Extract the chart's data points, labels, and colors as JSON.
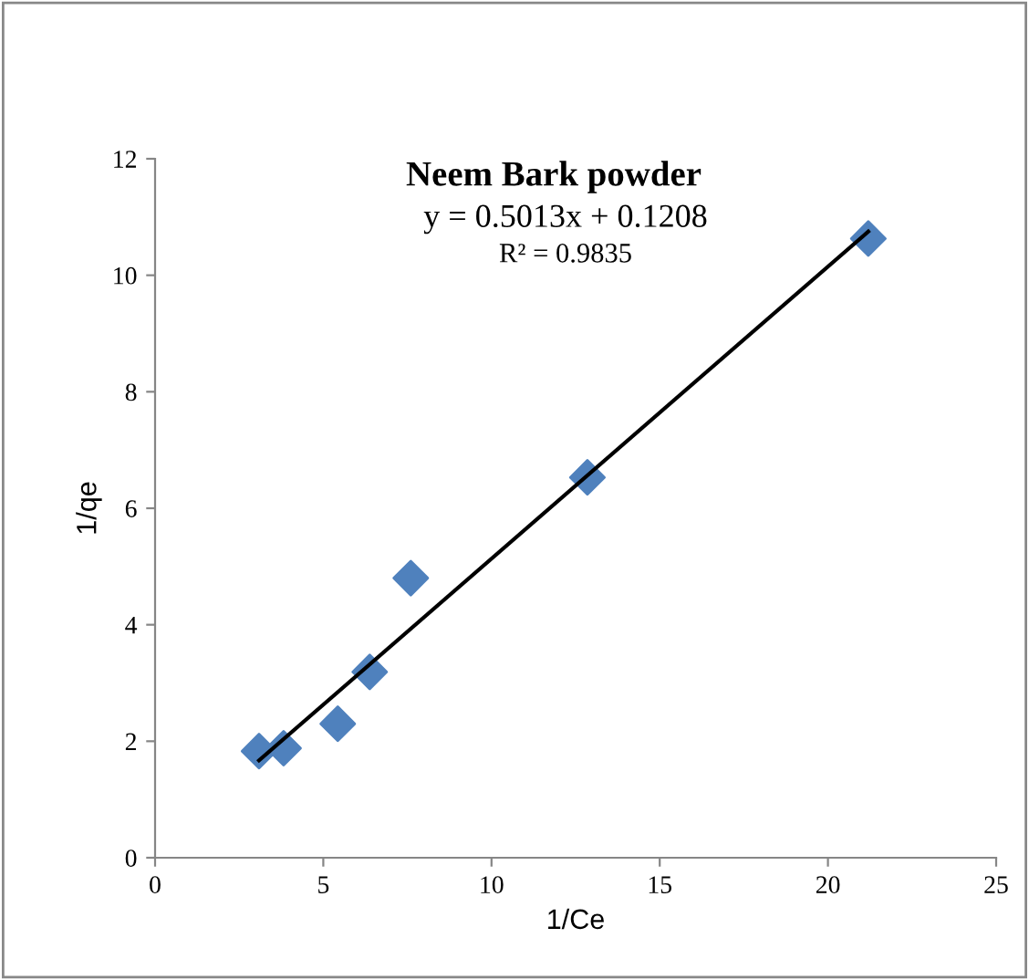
{
  "chart_data": {
    "type": "scatter",
    "title": "Neem Bark powder",
    "xlabel": "1/Ce",
    "ylabel": "1/qe",
    "series": [
      {
        "color": "#4f81bd",
        "marker": "diamond",
        "x": [
          3.09,
          3.82,
          5.43,
          6.38,
          7.6,
          12.85,
          21.2
        ],
        "values": [
          1.83,
          1.88,
          2.3,
          3.19,
          4.8,
          6.53,
          10.63
        ]
      },
      {
        "type": "line",
        "color": "#000000",
        "marker": "none",
        "line_style": "solid",
        "x": [
          3.09,
          21.2
        ],
        "values": [
          1.67,
          10.75
        ]
      }
    ],
    "annotations": [
      "y = 0.5013x + 0.1208",
      "R² = 0.9835"
    ],
    "xlim": [
      0,
      25
    ],
    "xticks": [
      0,
      5,
      10,
      15,
      20,
      25
    ],
    "ylim": [
      0,
      12
    ],
    "yticks": [
      0,
      2,
      4,
      6,
      8,
      10,
      12
    ],
    "grid": false,
    "legend": false
  }
}
